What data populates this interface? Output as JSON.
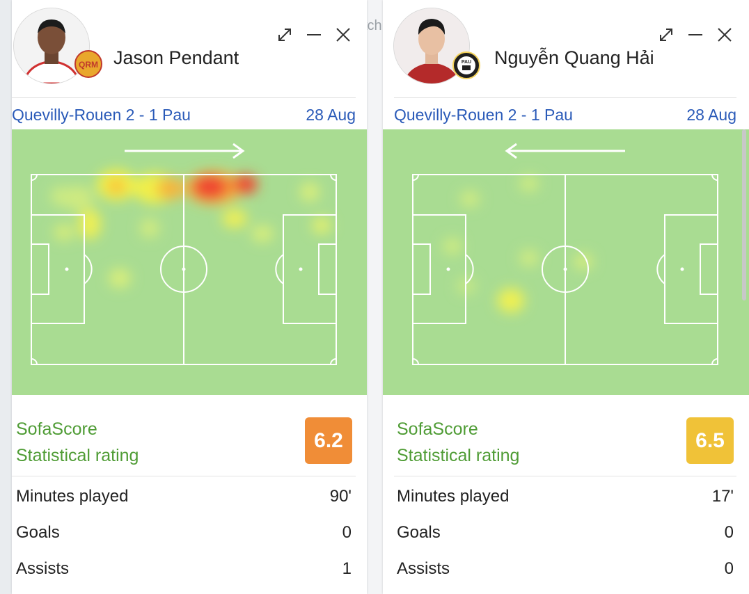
{
  "background": {
    "partial_text": "tch"
  },
  "cards": [
    {
      "player_name": "Jason Pendant",
      "team_badge_text": "QRM",
      "match": "Quevilly-Rouen 2 - 1 Pau",
      "date": "28 Aug",
      "direction": "right",
      "rating_title_1": "SofaScore",
      "rating_title_2": "Statistical rating",
      "rating": "6.2",
      "rating_color": "#f08d37",
      "stats": [
        {
          "label": "Minutes played",
          "value": "90'"
        },
        {
          "label": "Goals",
          "value": "0"
        },
        {
          "label": "Assists",
          "value": "1"
        }
      ],
      "controls": [
        "expand-icon",
        "minimize-icon",
        "close-icon"
      ]
    },
    {
      "player_name": "Nguyễn Quang Hải",
      "team_badge_text": "PAU",
      "match": "Quevilly-Rouen 2 - 1 Pau",
      "date": "28 Aug",
      "direction": "left",
      "rating_title_1": "SofaScore",
      "rating_title_2": "Statistical rating",
      "rating": "6.5",
      "rating_color": "#f0c238",
      "stats": [
        {
          "label": "Minutes played",
          "value": "17'"
        },
        {
          "label": "Goals",
          "value": "0"
        },
        {
          "label": "Assists",
          "value": "0"
        }
      ],
      "controls": [
        "expand-icon",
        "minimize-icon",
        "close-icon"
      ]
    }
  ]
}
